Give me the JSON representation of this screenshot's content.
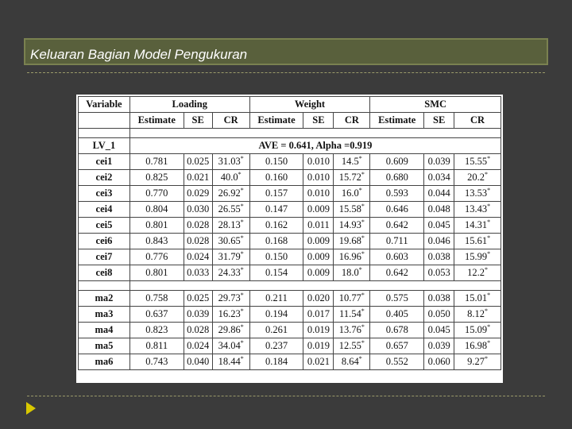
{
  "slide": {
    "title": "Keluaran Bagian Model Pengukuran"
  },
  "table": {
    "group_headers": [
      "Variable",
      "Loading",
      "Weight",
      "SMC"
    ],
    "sub_headers": [
      "Estimate",
      "SE",
      "CR",
      "Estimate",
      "SE",
      "CR",
      "Estimate",
      "SE",
      "CR"
    ],
    "section_label": "LV_1",
    "section_stat": "AVE = 0.641, Alpha =0.919",
    "rows": [
      {
        "var": "cei1",
        "le": "0.781",
        "lse": "0.025",
        "lcr": "31.03",
        "we": "0.150",
        "wse": "0.010",
        "wcr": "14.5",
        "se": "0.609",
        "sse": "0.039",
        "scr": "15.55"
      },
      {
        "var": "cei2",
        "le": "0.825",
        "lse": "0.021",
        "lcr": "40.0",
        "we": "0.160",
        "wse": "0.010",
        "wcr": "15.72",
        "se": "0.680",
        "sse": "0.034",
        "scr": "20.2"
      },
      {
        "var": "cei3",
        "le": "0.770",
        "lse": "0.029",
        "lcr": "26.92",
        "we": "0.157",
        "wse": "0.010",
        "wcr": "16.0",
        "se": "0.593",
        "sse": "0.044",
        "scr": "13.53"
      },
      {
        "var": "cei4",
        "le": "0.804",
        "lse": "0.030",
        "lcr": "26.55",
        "we": "0.147",
        "wse": "0.009",
        "wcr": "15.58",
        "se": "0.646",
        "sse": "0.048",
        "scr": "13.43"
      },
      {
        "var": "cei5",
        "le": "0.801",
        "lse": "0.028",
        "lcr": "28.13",
        "we": "0.162",
        "wse": "0.011",
        "wcr": "14.93",
        "se": "0.642",
        "sse": "0.045",
        "scr": "14.31"
      },
      {
        "var": "cei6",
        "le": "0.843",
        "lse": "0.028",
        "lcr": "30.65",
        "we": "0.168",
        "wse": "0.009",
        "wcr": "19.68",
        "se": "0.711",
        "sse": "0.046",
        "scr": "15.61"
      },
      {
        "var": "cei7",
        "le": "0.776",
        "lse": "0.024",
        "lcr": "31.79",
        "we": "0.150",
        "wse": "0.009",
        "wcr": "16.96",
        "se": "0.603",
        "sse": "0.038",
        "scr": "15.99"
      },
      {
        "var": "cei8",
        "le": "0.801",
        "lse": "0.033",
        "lcr": "24.33",
        "we": "0.154",
        "wse": "0.009",
        "wcr": "18.0",
        "se": "0.642",
        "sse": "0.053",
        "scr": "12.2"
      },
      {
        "var": "ma2",
        "le": "0.758",
        "lse": "0.025",
        "lcr": "29.73",
        "we": "0.211",
        "wse": "0.020",
        "wcr": "10.77",
        "se": "0.575",
        "sse": "0.038",
        "scr": "15.01"
      },
      {
        "var": "ma3",
        "le": "0.637",
        "lse": "0.039",
        "lcr": "16.23",
        "we": "0.194",
        "wse": "0.017",
        "wcr": "11.54",
        "se": "0.405",
        "sse": "0.050",
        "scr": "8.12"
      },
      {
        "var": "ma4",
        "le": "0.823",
        "lse": "0.028",
        "lcr": "29.86",
        "we": "0.261",
        "wse": "0.019",
        "wcr": "13.76",
        "se": "0.678",
        "sse": "0.045",
        "scr": "15.09"
      },
      {
        "var": "ma5",
        "le": "0.811",
        "lse": "0.024",
        "lcr": "34.04",
        "we": "0.237",
        "wse": "0.019",
        "wcr": "12.55",
        "se": "0.657",
        "sse": "0.039",
        "scr": "16.98"
      },
      {
        "var": "ma6",
        "le": "0.743",
        "lse": "0.040",
        "lcr": "18.44",
        "we": "0.184",
        "wse": "0.021",
        "wcr": "8.64",
        "se": "0.552",
        "sse": "0.060",
        "scr": "9.27"
      }
    ],
    "significance_mark": "*"
  },
  "colors": {
    "background": "#3b3b3b",
    "title_bar": "#59603c",
    "accent_arrow": "#d8c800"
  },
  "icons": {
    "bullet": "triangle-right-icon"
  }
}
